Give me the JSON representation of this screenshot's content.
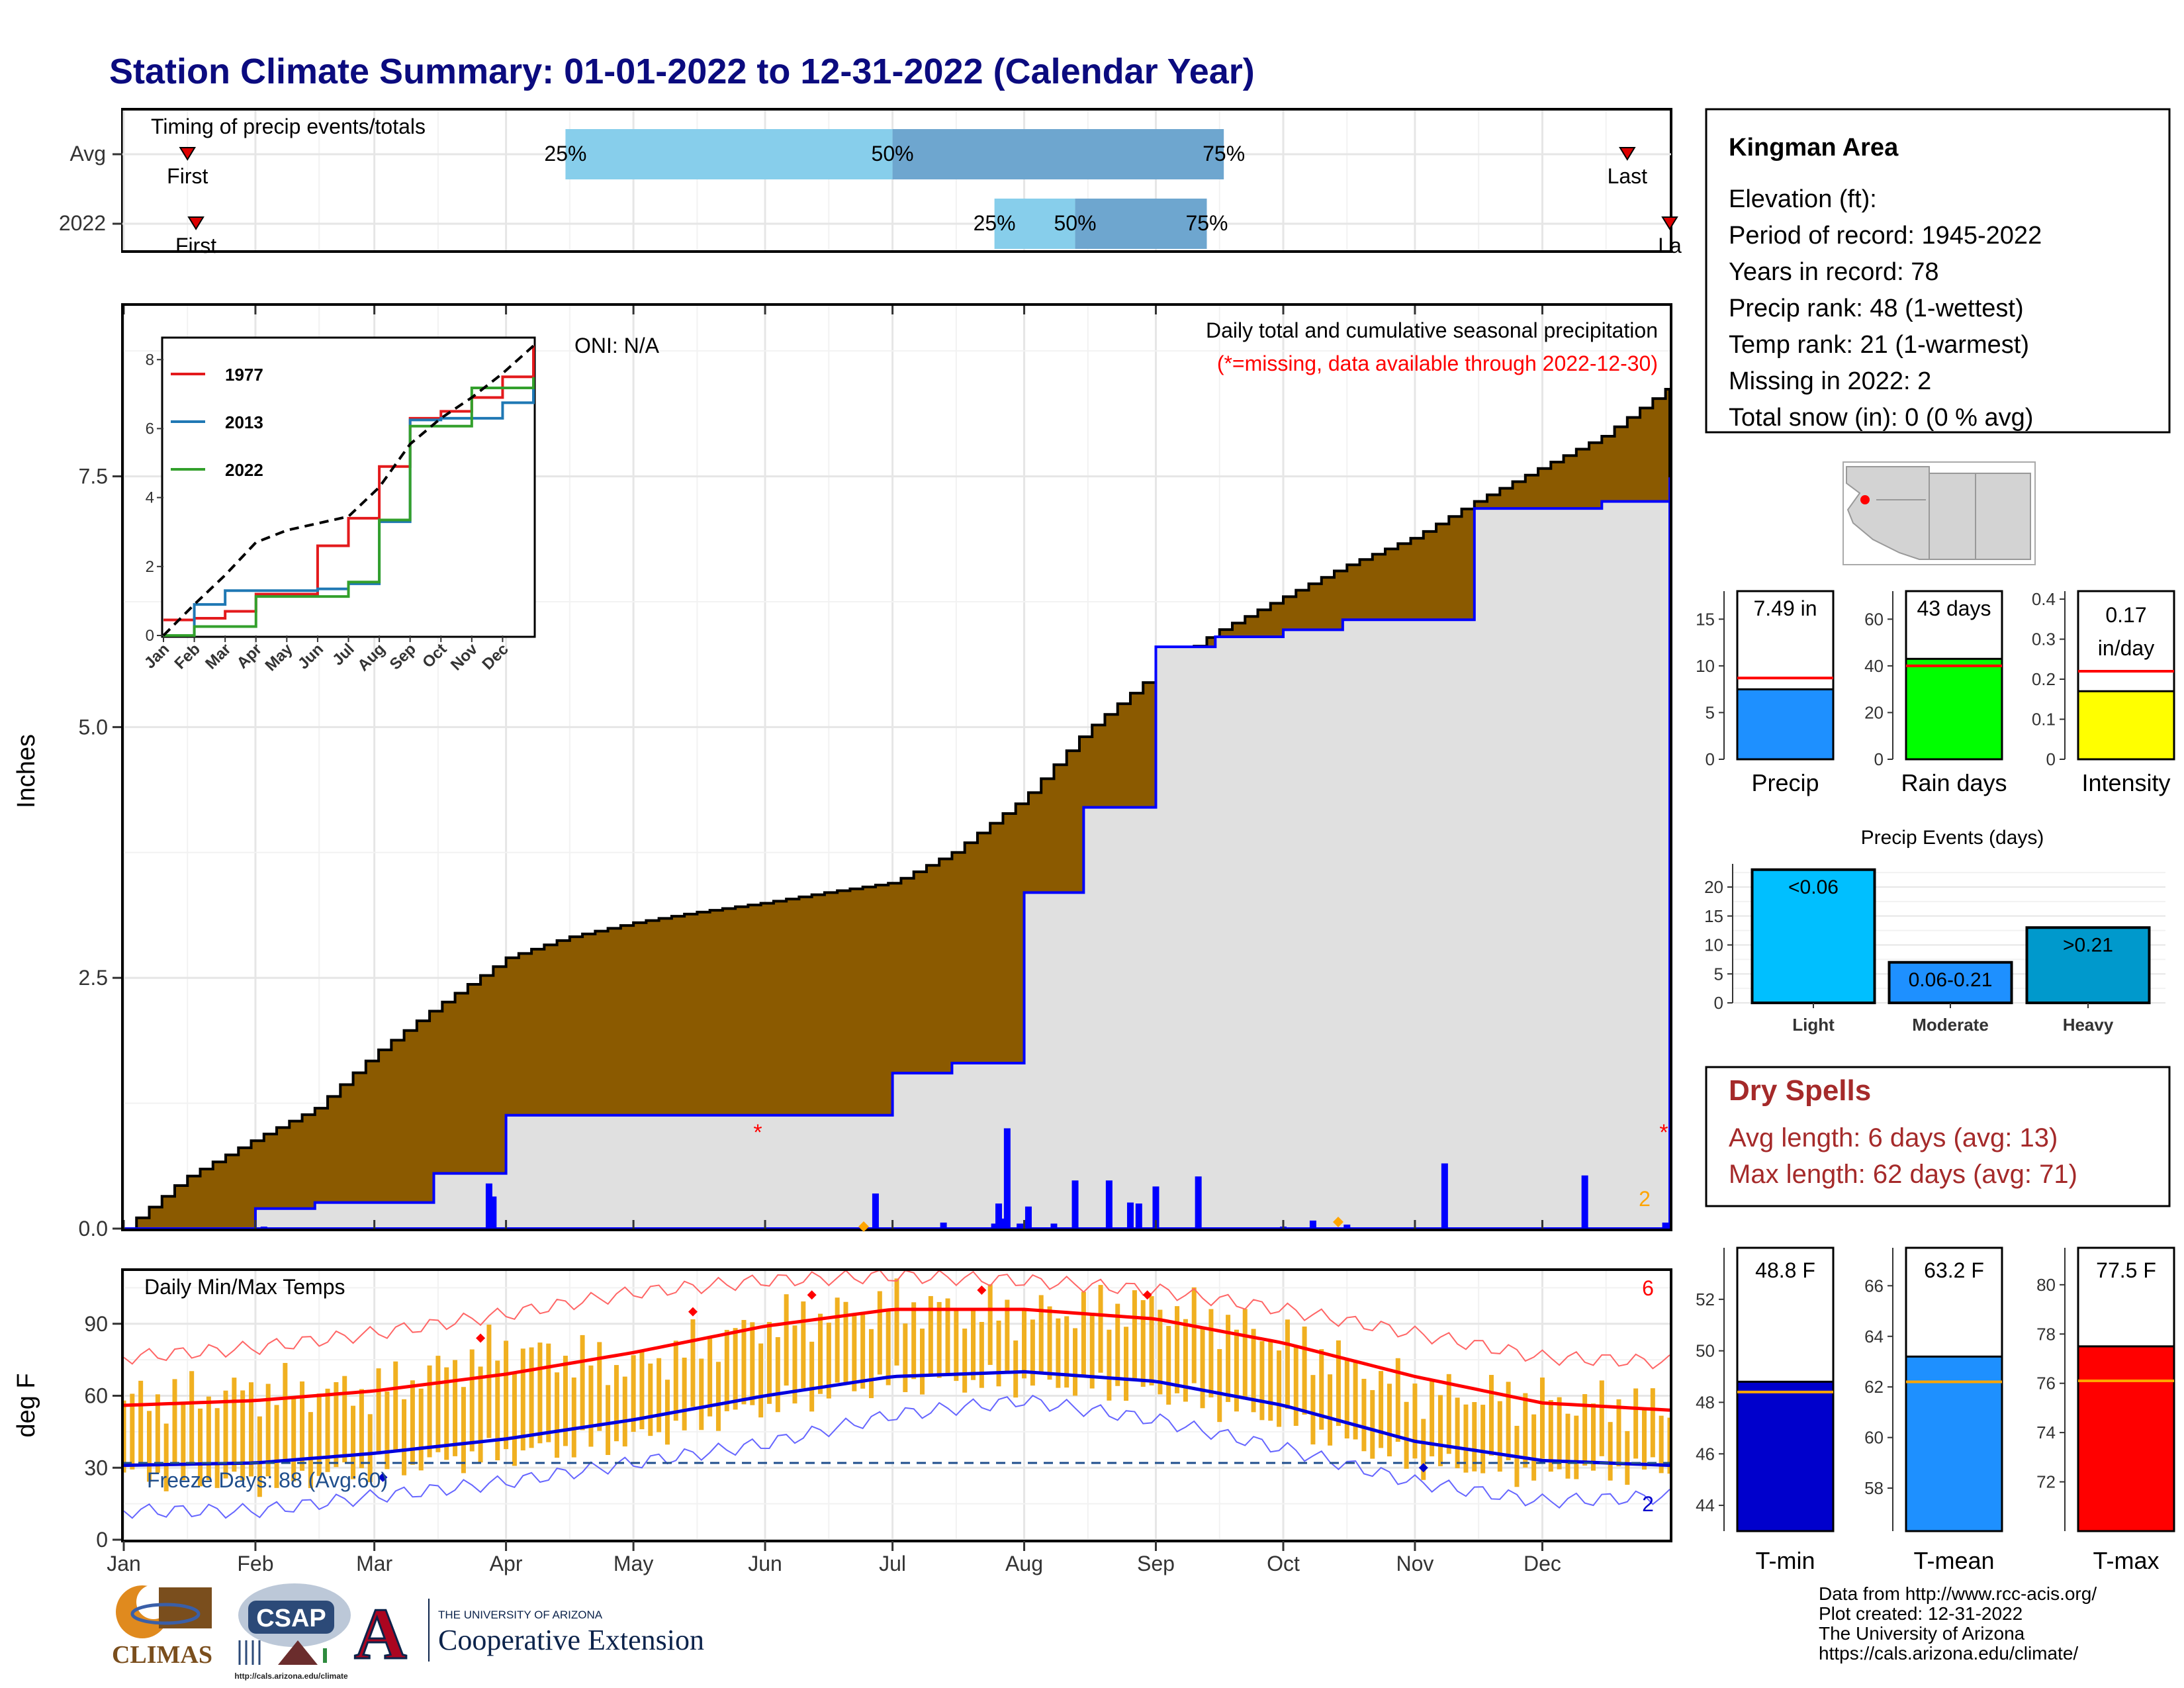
{
  "title": "Station Climate Summary: 01-01-2022 to 12-31-2022 (Calendar Year)",
  "months": [
    "Jan",
    "Feb",
    "Mar",
    "Apr",
    "May",
    "Jun",
    "Jul",
    "Aug",
    "Sep",
    "Oct",
    "Nov",
    "Dec"
  ],
  "colors": {
    "title": "#0b0b7f",
    "cum_fill": "#8b5a00",
    "ytd_fill": "#e0e0e0",
    "ytd_line": "#0000ff",
    "bar_blue": "#0000ff",
    "tmin_bar": "#0000cc",
    "tmean_bar": "#1e90ff",
    "tmax_bar": "#ff0000",
    "temp_range": "#f0b020",
    "dry_spell": "#a52a2a",
    "light": "#00bfff",
    "moderate": "#1e90ff",
    "heavy": "#0099cc",
    "q_light": "#87ceeb",
    "q_dark": "#6ea6cf"
  },
  "timing": {
    "label": "Timing of precip events/totals",
    "rows": [
      {
        "name": "Avg",
        "q25": "25%",
        "q50": "50%",
        "q75": "75%",
        "first": "First",
        "last": "Last"
      },
      {
        "name": "2022",
        "q25": "25%",
        "q50": "50%",
        "q75": "75%",
        "first": "First",
        "last": "La"
      }
    ]
  },
  "precip_panel": {
    "ylabel": "Inches",
    "oni": "ONI: N/A",
    "caption": "Daily total and cumulative seasonal precipitation",
    "missing_note": "(*=missing, data available through 2022-12-30)",
    "missing_count": "2",
    "missing_marker": "*"
  },
  "inset": {
    "legend": [
      "1977",
      "2013",
      "2022"
    ],
    "months": [
      "Jan",
      "Feb",
      "Mar",
      "Apr",
      "May",
      "Jun",
      "Jul",
      "Aug",
      "Sep",
      "Oct",
      "Nov",
      "Dec"
    ]
  },
  "temp_panel": {
    "ylabel": "deg F",
    "caption": "Daily Min/Max Temps",
    "freeze": "Freeze Days: 88 (Avg:60)",
    "hot_count": "6",
    "cold_count": "2"
  },
  "station": {
    "name": "Kingman Area",
    "lines": [
      "Elevation (ft):",
      "Period of record: 1945-2022",
      "Years in record: 78",
      "Precip rank: 48 (1-wettest)",
      "Temp rank: 21 (1-warmest)",
      "Missing in 2022: 2",
      "Total snow (in): 0 (0 % avg)"
    ]
  },
  "mini_bars": [
    {
      "label": "Precip",
      "value_text": "7.49 in",
      "value": 7.49,
      "avg": 8.7,
      "ylim": [
        0,
        18
      ],
      "ticks": [
        0,
        5,
        10,
        15
      ]
    },
    {
      "label": "Rain days",
      "value_text": "43 days",
      "value": 43,
      "avg": 40,
      "ylim": [
        0,
        72
      ],
      "ticks": [
        0,
        20,
        40,
        60
      ]
    },
    {
      "label": "Intensity",
      "value_text": "0.17",
      "value_text2": "in/day",
      "value": 0.17,
      "avg": 0.22,
      "ylim": [
        0,
        0.42
      ],
      "ticks": [
        0.0,
        0.1,
        0.2,
        0.3,
        0.4
      ]
    }
  ],
  "events": {
    "title": "Precip Events (days)",
    "categories": [
      "Light",
      "Moderate",
      "Heavy"
    ],
    "labels": [
      "<0.06",
      "0.06-0.21",
      ">0.21"
    ],
    "values": [
      23,
      7,
      13
    ],
    "ticks": [
      0,
      5,
      10,
      15,
      20
    ]
  },
  "dry": {
    "title": "Dry Spells",
    "avg": "Avg length: 6 days (avg: 13)",
    "max": "Max length: 62 days (avg: 71)"
  },
  "temp_bars": [
    {
      "label": "T-min",
      "value_text": "48.8 F",
      "value": 48.8,
      "avg": 48.4,
      "ylim": [
        43,
        54
      ],
      "ticks": [
        44,
        46,
        48,
        50,
        52
      ]
    },
    {
      "label": "T-mean",
      "value_text": "63.2 F",
      "value": 63.2,
      "avg": 62.2,
      "ylim": [
        56.3,
        67.5
      ],
      "ticks": [
        58,
        60,
        62,
        64,
        66
      ]
    },
    {
      "label": "T-max",
      "value_text": "77.5 F",
      "value": 77.5,
      "avg": 76.1,
      "ylim": [
        70,
        81.5
      ],
      "ticks": [
        72,
        74,
        76,
        78,
        80
      ]
    }
  ],
  "footer": [
    "Data from http://www.rcc-acis.org/",
    "Plot created: 12-31-2022",
    "The University of Arizona",
    "https://cals.arizona.edu/climate/"
  ],
  "logos": {
    "climas": "CLIMAS",
    "csap": "CSAP",
    "csap_url": "http://cals.arizona.edu/climate",
    "ua_letter": "A",
    "ua_small": "THE UNIVERSITY OF ARIZONA",
    "ua_big": "Cooperative Extension"
  },
  "chart_data": [
    {
      "type": "bar",
      "title": "Timing of precip events/totals",
      "categories": [
        "Avg",
        "2022"
      ],
      "series": [
        {
          "name": "25%",
          "values": [
            "Apr 15",
            "Jul 25"
          ]
        },
        {
          "name": "50%",
          "values": [
            "Jul 1",
            "Aug 13"
          ]
        },
        {
          "name": "75%",
          "values": [
            "Sep 17",
            "Sep 13"
          ]
        },
        {
          "name": "First",
          "values": [
            "Jan 16",
            "Jan 18"
          ]
        },
        {
          "name": "Last",
          "values": [
            "Dec 21",
            "Dec 31"
          ]
        }
      ]
    },
    {
      "type": "area",
      "title": "Daily total and cumulative seasonal precipitation",
      "ylabel": "Inches",
      "ylim": [
        0,
        9.2
      ],
      "yticks": [
        0.0,
        2.5,
        5.0,
        7.5
      ],
      "x": [
        "Jan 1",
        "Jan 15",
        "Feb 1",
        "Feb 15",
        "Mar 1",
        "Mar 15",
        "Apr 1",
        "Apr 15",
        "May 1",
        "May 15",
        "Jun 1",
        "Jun 15",
        "Jul 1",
        "Jul 15",
        "Aug 1",
        "Aug 15",
        "Sep 1",
        "Sep 15",
        "Oct 1",
        "Oct 15",
        "Nov 1",
        "Nov 15",
        "Dec 1",
        "Dec 15",
        "Dec 31"
      ],
      "series": [
        {
          "name": "Average cumulative",
          "values": [
            0.0,
            0.5,
            0.9,
            1.2,
            1.75,
            2.2,
            2.7,
            2.9,
            3.05,
            3.15,
            3.25,
            3.35,
            3.45,
            3.75,
            4.3,
            4.95,
            5.55,
            5.95,
            6.3,
            6.6,
            6.9,
            7.25,
            7.6,
            7.9,
            8.4
          ]
        },
        {
          "name": "2022 cumulative",
          "values": [
            0.0,
            0.0,
            0.2,
            0.26,
            0.26,
            0.55,
            1.13,
            1.13,
            1.13,
            1.13,
            1.13,
            1.13,
            1.55,
            1.65,
            3.35,
            4.2,
            5.8,
            5.9,
            5.97,
            6.07,
            6.07,
            7.18,
            7.18,
            7.25,
            7.49
          ]
        }
      ],
      "daily_bars": [
        {
          "x": "Feb 3",
          "value": 0.02
        },
        {
          "x": "Mar 28",
          "value": 0.45
        },
        {
          "x": "Mar 29",
          "value": 0.32
        },
        {
          "x": "Jun 27",
          "value": 0.35
        },
        {
          "x": "Jul 13",
          "value": 0.06
        },
        {
          "x": "Jul 25",
          "value": 0.05
        },
        {
          "x": "Jul 26",
          "value": 0.25
        },
        {
          "x": "Jul 27",
          "value": 0.1
        },
        {
          "x": "Jul 28",
          "value": 1.0
        },
        {
          "x": "Jul 31",
          "value": 0.05
        },
        {
          "x": "Aug 2",
          "value": 0.22
        },
        {
          "x": "Aug 8",
          "value": 0.05
        },
        {
          "x": "Aug 13",
          "value": 0.48
        },
        {
          "x": "Aug 21",
          "value": 0.48
        },
        {
          "x": "Aug 26",
          "value": 0.26
        },
        {
          "x": "Aug 28",
          "value": 0.25
        },
        {
          "x": "Sep 1",
          "value": 0.42
        },
        {
          "x": "Sep 11",
          "value": 0.52
        },
        {
          "x": "Oct 1",
          "value": 0.02
        },
        {
          "x": "Oct 8",
          "value": 0.08
        },
        {
          "x": "Oct 16",
          "value": 0.04
        },
        {
          "x": "Nov 8",
          "value": 0.65
        },
        {
          "x": "Dec 11",
          "value": 0.53
        },
        {
          "x": "Dec 30",
          "value": 0.06
        }
      ],
      "missing_days": [
        "Jun 1",
        "Dec 31"
      ]
    },
    {
      "type": "line",
      "title": "",
      "ylim": [
        0,
        8.6
      ],
      "yticks": [
        0,
        2,
        4,
        6,
        8
      ],
      "x": [
        "Jan",
        "Feb",
        "Mar",
        "Apr",
        "May",
        "Jun",
        "Jul",
        "Aug",
        "Sep",
        "Oct",
        "Nov",
        "Dec",
        "Dec 31"
      ],
      "series": [
        {
          "name": "1977",
          "values": [
            0.45,
            0.5,
            0.7,
            1.2,
            1.2,
            2.6,
            3.4,
            4.9,
            6.3,
            6.5,
            6.9,
            7.5,
            8.4
          ]
        },
        {
          "name": "2013",
          "values": [
            0.0,
            0.9,
            1.3,
            1.3,
            1.3,
            1.35,
            1.5,
            3.3,
            6.25,
            6.3,
            6.3,
            6.75,
            7.15
          ]
        },
        {
          "name": "2022",
          "values": [
            0.0,
            0.26,
            0.26,
            1.13,
            1.13,
            1.13,
            1.55,
            3.35,
            6.07,
            6.07,
            7.18,
            7.18,
            7.49
          ]
        },
        {
          "name": "Average",
          "values": [
            0.0,
            0.9,
            1.75,
            2.7,
            3.05,
            3.25,
            3.45,
            4.3,
            5.55,
            6.3,
            6.9,
            7.6,
            8.4
          ]
        }
      ]
    },
    {
      "type": "line",
      "title": "Daily Min/Max Temps",
      "ylabel": "deg F",
      "ylim": [
        0,
        112
      ],
      "yticks": [
        0,
        30,
        60,
        90
      ],
      "freeze_line": 32,
      "x": [
        "Jan 1",
        "Feb 1",
        "Mar 1",
        "Apr 1",
        "May 1",
        "Jun 1",
        "Jul 1",
        "Aug 1",
        "Sep 1",
        "Oct 1",
        "Nov 1",
        "Dec 1",
        "Dec 31"
      ],
      "series": [
        {
          "name": "Normal max",
          "values": [
            56,
            58,
            62,
            69,
            78,
            89,
            96,
            96,
            92,
            82,
            68,
            57,
            54
          ]
        },
        {
          "name": "Normal min",
          "values": [
            31,
            32,
            36,
            42,
            50,
            60,
            68,
            70,
            66,
            56,
            41,
            33,
            31
          ]
        },
        {
          "name": "Record max",
          "values": [
            76,
            80,
            86,
            94,
            103,
            108,
            110,
            108,
            104,
            96,
            86,
            76,
            74
          ]
        },
        {
          "name": "Record min",
          "values": [
            12,
            12,
            18,
            24,
            32,
            40,
            52,
            58,
            50,
            38,
            24,
            16,
            18
          ]
        },
        {
          "name": "2022 max",
          "values": [
            58,
            62,
            62,
            80,
            72,
            90,
            98,
            94,
            98,
            84,
            62,
            58,
            55
          ]
        },
        {
          "name": "2022 min",
          "values": [
            28,
            24,
            30,
            36,
            42,
            56,
            66,
            66,
            62,
            50,
            32,
            28,
            30
          ]
        }
      ]
    },
    {
      "type": "bar",
      "title": "Precip Events (days)",
      "categories": [
        "Light",
        "Moderate",
        "Heavy"
      ],
      "values": [
        23,
        7,
        13
      ],
      "ylim": [
        0,
        24
      ]
    },
    {
      "type": "bar",
      "categories": [
        "Precip",
        "Rain days",
        "Intensity"
      ],
      "series": [
        {
          "name": "2022",
          "values": [
            7.49,
            43,
            0.17
          ]
        },
        {
          "name": "Average",
          "values": [
            8.7,
            40,
            0.22
          ]
        }
      ]
    },
    {
      "type": "bar",
      "categories": [
        "T-min",
        "T-mean",
        "T-max"
      ],
      "series": [
        {
          "name": "2022",
          "values": [
            48.8,
            63.2,
            77.5
          ]
        },
        {
          "name": "Average",
          "values": [
            48.4,
            62.2,
            76.1
          ]
        }
      ]
    }
  ]
}
